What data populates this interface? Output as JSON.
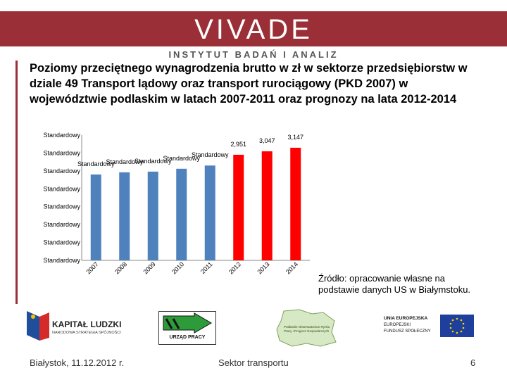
{
  "header": {
    "logo_text": "VIVADE",
    "subtitle": "INSTYTUT BADAŃ I ANALIZ"
  },
  "title": "Poziomy przeciętnego wynagrodzenia brutto w zł w sektorze przedsiębiorstw w dziale 49 Transport lądowy oraz transport rurociągowy (PKD 2007) w województwie podlaskim w latach 2007-2011 oraz prognozy na lata 2012-2014",
  "source_text": "Źródło: opracowanie własne na podstawie danych US w Białymstoku.",
  "footer": {
    "date_place": "Białystok, 11.12.2012 r.",
    "section": "Sektor transportu",
    "page_number": "6"
  },
  "logos": {
    "kapital_name": "KAPITAŁ LUDZKI",
    "kapital_sub": "NARODOWA STRATEGIA SPÓJNOŚCI",
    "urzad": "URZĄD PRACY",
    "obserwatorium": "Podlaskie Obserwatorium Rynku Pracy i Prognoz Gospodarczych",
    "ue_line1": "UNIA EUROPEJSKA",
    "ue_line2": "EUROPEJSKI",
    "ue_line3": "FUNDUSZ SPOŁECZNY"
  },
  "colors": {
    "brand": "#9b2f37",
    "historical": "#4f81bd",
    "forecast": "#ff0000"
  },
  "chart_data": {
    "type": "bar",
    "categories": [
      "2007",
      "2008",
      "2009",
      "2010",
      "2011",
      "2012",
      "2013",
      "2014"
    ],
    "values": [
      2400,
      2460,
      2480,
      2560,
      2650,
      2951,
      3047,
      3147
    ],
    "forecast_from_index": 5,
    "data_labels": [
      "Standardowy",
      "Standardowy",
      "Standardowy",
      "Standardowy",
      "Standardowy",
      "2,951",
      "3,047",
      "3,147"
    ],
    "y_tick_labels": [
      "Standardowy",
      "Standardowy",
      "Standardowy",
      "Standardowy",
      "Standardowy",
      "Standardowy",
      "Standardowy",
      "Standardowy"
    ],
    "ylim": [
      0,
      3500
    ],
    "grid": false,
    "legend": "none"
  }
}
